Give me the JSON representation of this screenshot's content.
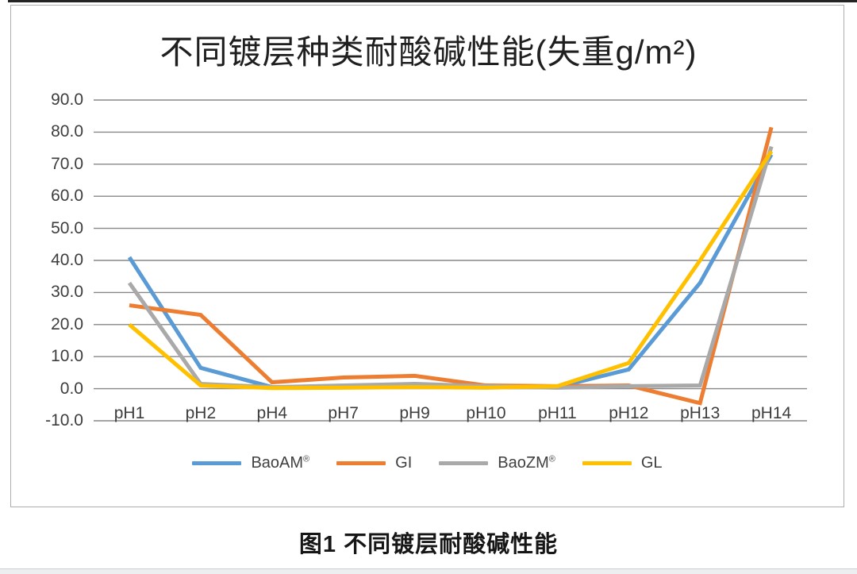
{
  "caption": "图1 不同镀层耐酸碱性能",
  "chart_data": {
    "type": "line",
    "title": "不同镀层种类耐酸碱性能(失重g/m²)",
    "xlabel": "",
    "ylabel": "",
    "categories": [
      "pH1",
      "pH2",
      "pH4",
      "pH7",
      "pH9",
      "pH10",
      "pH11",
      "pH12",
      "pH13",
      "pH14"
    ],
    "series": [
      {
        "name": "BaoAM",
        "name_sup": "®",
        "color": "#5B9BD5",
        "values": [
          41,
          6.5,
          0.5,
          0.5,
          1,
          0.5,
          0.5,
          6,
          33,
          73
        ]
      },
      {
        "name": "GI",
        "name_sup": "",
        "color": "#ED7D31",
        "values": [
          26,
          23,
          2,
          3.5,
          4,
          1,
          0.8,
          1,
          -4.5,
          81.5
        ]
      },
      {
        "name": "BaoZM",
        "name_sup": "®",
        "color": "#A9A9A9",
        "values": [
          33,
          1.5,
          0.5,
          1,
          1.5,
          0.8,
          0.3,
          0.8,
          1,
          75.5
        ]
      },
      {
        "name": "GL",
        "name_sup": "",
        "color": "#FFC000",
        "values": [
          20,
          1,
          0.2,
          0.3,
          0.5,
          0.3,
          0.8,
          8,
          40,
          74
        ]
      }
    ],
    "ylim": [
      -10,
      90
    ],
    "ytick_step": 10,
    "yticks": [
      {
        "label": "90.0",
        "value": 90
      },
      {
        "label": "80.0",
        "value": 80
      },
      {
        "label": "70.0",
        "value": 70
      },
      {
        "label": "60.0",
        "value": 60
      },
      {
        "label": "50.0",
        "value": 50
      },
      {
        "label": "40.0",
        "value": 40
      },
      {
        "label": "30.0",
        "value": 30
      },
      {
        "label": "20.0",
        "value": 20
      },
      {
        "label": "10.0",
        "value": 10
      },
      {
        "label": "0.0",
        "value": 0
      },
      {
        "label": "-10.0",
        "value": -10
      }
    ],
    "grid": true,
    "gridline_color": "#878787",
    "legend_position": "bottom"
  }
}
